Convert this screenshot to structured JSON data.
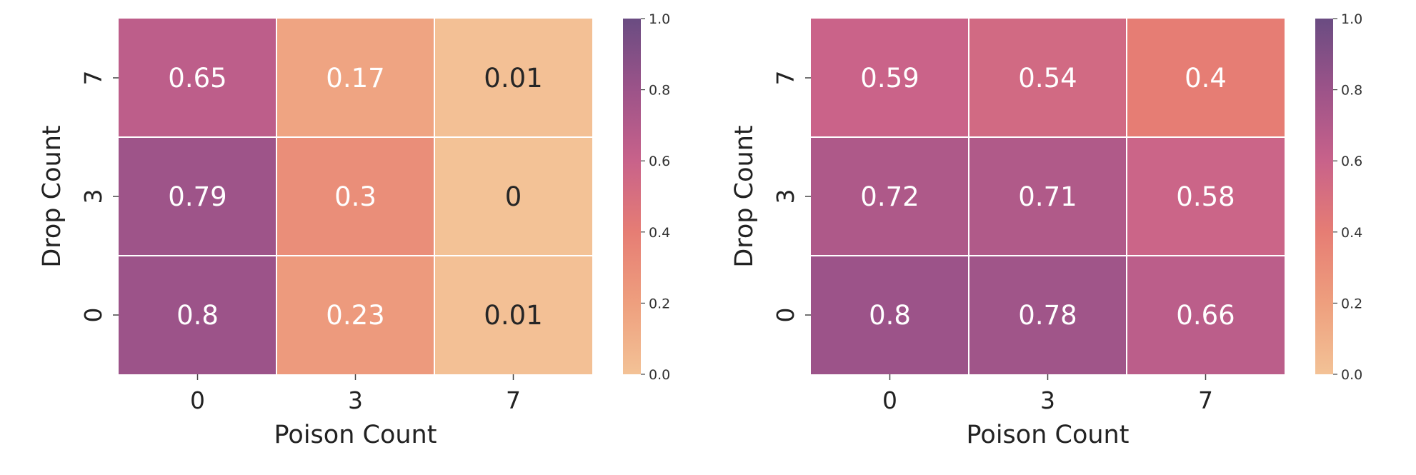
{
  "chart_data": [
    {
      "type": "heatmap",
      "x": [
        "0",
        "3",
        "7"
      ],
      "y": [
        "7",
        "3",
        "0"
      ],
      "values": [
        [
          0.65,
          0.17,
          0.01
        ],
        [
          0.79,
          0.3,
          0
        ],
        [
          0.8,
          0.23,
          0.01
        ]
      ],
      "xlabel": "Poison Count",
      "ylabel": "Drop Count",
      "colorbar": {
        "range": [
          0,
          1
        ],
        "ticks": [
          "0.0",
          "0.2",
          "0.4",
          "0.6",
          "0.8",
          "1.0"
        ]
      },
      "colormap": "flare"
    },
    {
      "type": "heatmap",
      "x": [
        "0",
        "3",
        "7"
      ],
      "y": [
        "7",
        "3",
        "0"
      ],
      "values": [
        [
          0.59,
          0.54,
          0.4
        ],
        [
          0.72,
          0.71,
          0.58
        ],
        [
          0.8,
          0.78,
          0.66
        ]
      ],
      "xlabel": "Poison Count",
      "ylabel": "Drop Count",
      "colorbar": {
        "range": [
          0,
          1
        ],
        "ticks": [
          "0.0",
          "0.2",
          "0.4",
          "0.6",
          "0.8",
          "1.0"
        ]
      },
      "colormap": "flare"
    }
  ]
}
